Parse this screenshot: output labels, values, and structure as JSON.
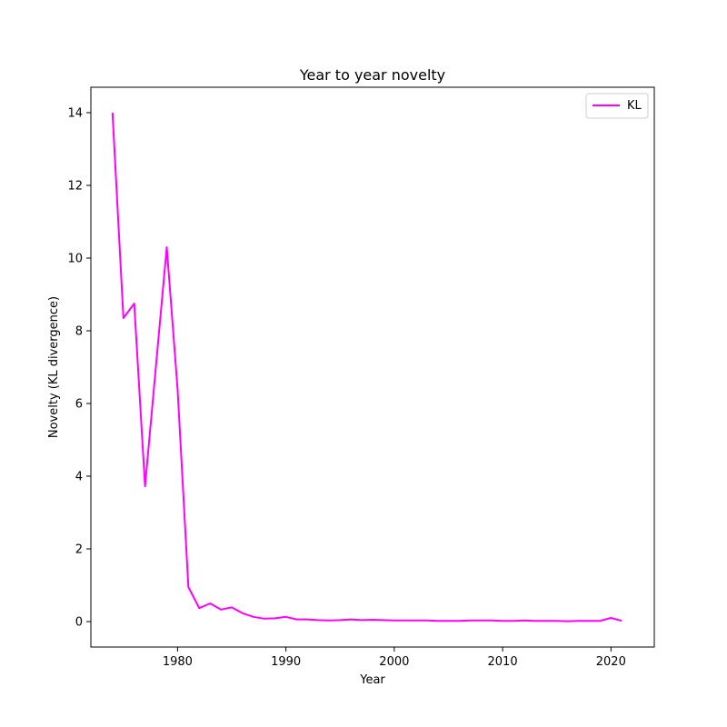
{
  "chart_data": {
    "type": "line",
    "title": "Year to year novelty",
    "xlabel": "Year",
    "ylabel": "Novelty (KL divergence)",
    "xlim": [
      1972,
      2024
    ],
    "ylim": [
      -0.7,
      14.7
    ],
    "xticks": [
      1980,
      1990,
      2000,
      2010,
      2020
    ],
    "yticks": [
      0,
      2,
      4,
      6,
      8,
      10,
      12,
      14
    ],
    "grid": false,
    "legend_position": "top-right",
    "series": [
      {
        "name": "KL",
        "color": "#ff00ff",
        "x": [
          1974,
          1975,
          1976,
          1977,
          1978,
          1979,
          1980,
          1981,
          1982,
          1983,
          1984,
          1985,
          1986,
          1987,
          1988,
          1989,
          1990,
          1991,
          1992,
          1993,
          1994,
          1995,
          1996,
          1997,
          1998,
          1999,
          2000,
          2001,
          2002,
          2003,
          2004,
          2005,
          2006,
          2007,
          2008,
          2009,
          2010,
          2011,
          2012,
          2013,
          2014,
          2015,
          2016,
          2017,
          2018,
          2019,
          2020,
          2021
        ],
        "y": [
          14.0,
          8.35,
          8.75,
          3.72,
          7.0,
          10.3,
          6.4,
          0.95,
          0.37,
          0.5,
          0.33,
          0.39,
          0.23,
          0.13,
          0.08,
          0.09,
          0.13,
          0.06,
          0.06,
          0.04,
          0.03,
          0.04,
          0.06,
          0.04,
          0.05,
          0.04,
          0.03,
          0.03,
          0.03,
          0.03,
          0.02,
          0.02,
          0.02,
          0.03,
          0.03,
          0.03,
          0.02,
          0.02,
          0.03,
          0.02,
          0.02,
          0.02,
          0.01,
          0.02,
          0.02,
          0.02,
          0.1,
          0.02
        ]
      }
    ]
  }
}
